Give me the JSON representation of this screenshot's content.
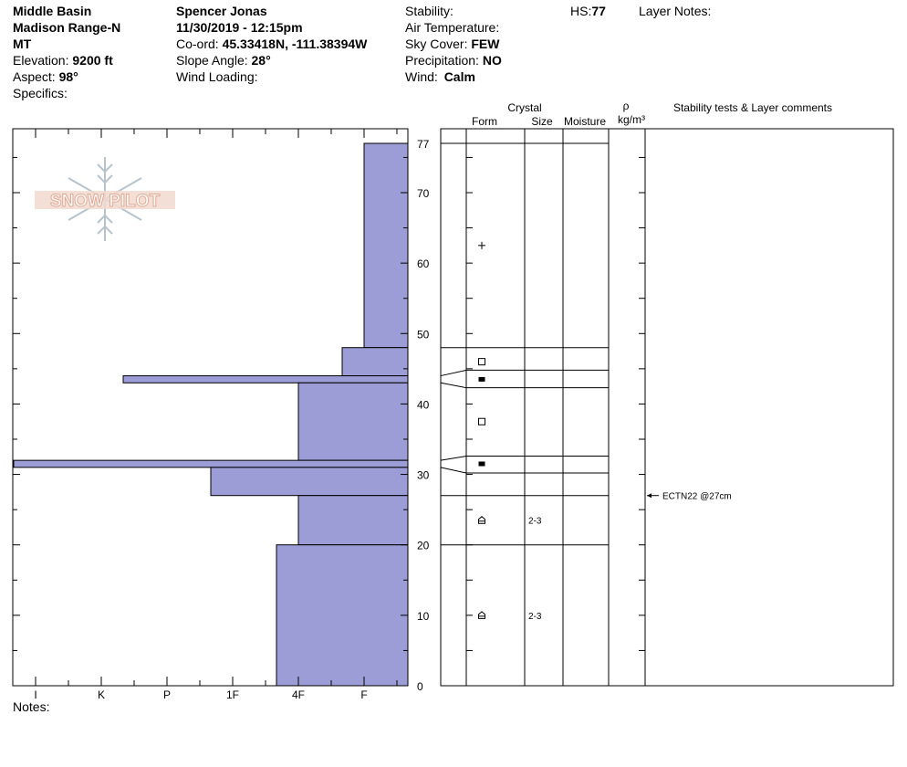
{
  "header": {
    "location": "Middle Basin",
    "range": "Madison Range-N",
    "state": "MT",
    "elevation_label": "Elevation:",
    "elevation_value": "9200 ft",
    "aspect_label": "Aspect:",
    "aspect_value": "98°",
    "specifics_label": "Specifics:",
    "observer": "Spencer Jonas",
    "datetime": "11/30/2019 - 12:15pm",
    "coord_label": "Co-ord:",
    "coord_value": "45.33418N, -111.38394W",
    "slope_label": "Slope Angle:",
    "slope_value": "28°",
    "wind_loading_label": "Wind Loading:",
    "stability_label": "Stability:",
    "air_temp_label": "Air Temperature:",
    "sky_label": "Sky Cover:",
    "sky_value": "FEW",
    "precip_label": "Precipitation:",
    "precip_value": "NO",
    "wind_label": "Wind:",
    "wind_value": "Calm",
    "hs_label": "HS:",
    "hs_value": "77",
    "layer_notes_label": "Layer Notes:"
  },
  "notes_label": "Notes:",
  "logo_text": "SNOW PILOT",
  "columns": {
    "crystal": "Crystal",
    "form": "Form",
    "size": "Size",
    "moisture": "Moisture",
    "rho": "ρ",
    "density_unit": "kg/m³",
    "comments": "Stability tests & Layer comments"
  },
  "colors": {
    "bar_fill": "#9c9cd6",
    "line": "#000000",
    "logo": "#e8c0b0"
  },
  "chart_data": {
    "type": "bar",
    "hardness_ticks": [
      "I",
      "K",
      "P",
      "1F",
      "4F",
      "F"
    ],
    "height_ticks": [
      0,
      10,
      20,
      30,
      40,
      50,
      60,
      70,
      77
    ],
    "ylim": [
      0,
      77
    ],
    "hs": 77,
    "layers": [
      {
        "bottom": 48,
        "top": 77,
        "hardness": "F"
      },
      {
        "bottom": 44,
        "top": 48,
        "hardness": "F-"
      },
      {
        "bottom": 43,
        "top": 44,
        "hardness": "K+"
      },
      {
        "bottom": 32,
        "top": 43,
        "hardness": "4F"
      },
      {
        "bottom": 31,
        "top": 32,
        "hardness": "I-"
      },
      {
        "bottom": 27,
        "top": 31,
        "hardness": "1F-"
      },
      {
        "bottom": 20,
        "top": 27,
        "hardness": "4F"
      },
      {
        "bottom": 0,
        "top": 20,
        "hardness": "4F-"
      }
    ],
    "boundaries": [
      48,
      44.8,
      42.3,
      32.6,
      30.2,
      27,
      20
    ],
    "crystals": [
      {
        "height": 62.5,
        "form": "precipitation-particle",
        "size": ""
      },
      {
        "height": 46,
        "form": "faceted-crystal",
        "size": ""
      },
      {
        "height": 43.5,
        "form": "surface-hoar",
        "size": ""
      },
      {
        "height": 37.5,
        "form": "faceted-crystal",
        "size": ""
      },
      {
        "height": 31.5,
        "form": "surface-hoar",
        "size": ""
      },
      {
        "height": 23.5,
        "form": "depth-hoar",
        "size": "2-3"
      },
      {
        "height": 10,
        "form": "depth-hoar",
        "size": "2-3"
      }
    ],
    "stability_tests": [
      {
        "height": 27,
        "label": "ECTN22 @27cm"
      }
    ]
  }
}
